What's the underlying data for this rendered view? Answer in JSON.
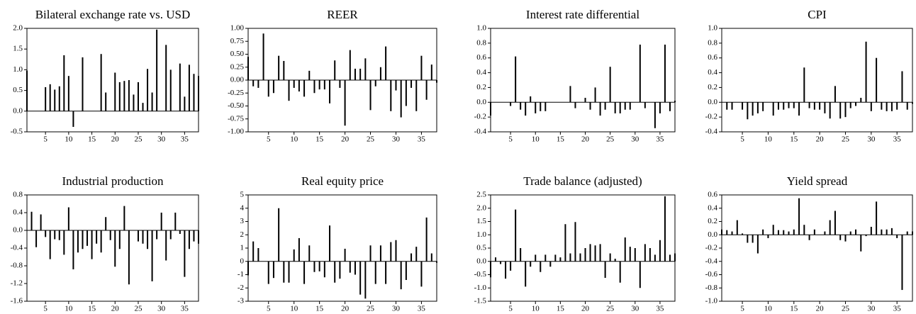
{
  "chart_data": [
    {
      "type": "bar",
      "title": "Bilateral exchange rate vs. USD",
      "color": "#000000",
      "x": [
        1,
        2,
        3,
        4,
        5,
        6,
        7,
        8,
        9,
        10,
        11,
        12,
        13,
        14,
        15,
        16,
        17,
        18,
        19,
        20,
        21,
        22,
        23,
        24,
        25,
        26,
        27,
        28,
        29,
        30,
        31,
        32,
        33,
        34,
        35,
        36,
        37,
        38
      ],
      "values": [
        0.98,
        0,
        0,
        0,
        0.58,
        0.65,
        0.52,
        0.6,
        1.35,
        0.85,
        -0.38,
        0,
        1.3,
        0,
        0,
        0,
        1.38,
        0.45,
        0,
        0.93,
        0.7,
        0.73,
        0.75,
        0.4,
        0.7,
        0.2,
        1.02,
        0.45,
        1.97,
        0,
        1.6,
        1.0,
        0,
        1.15,
        0.35,
        1.12,
        0.9,
        0.85
      ],
      "xlim": [
        1,
        38
      ],
      "xticks": [
        5,
        10,
        15,
        20,
        25,
        30,
        35
      ],
      "ylim": [
        -0.5,
        2.0
      ],
      "yticks": [
        -0.5,
        {
          "value": 0,
          "label": "0.0"
        },
        0.5,
        {
          "value": 1,
          "label": "1.0"
        },
        1.5,
        {
          "value": 2,
          "label": "2.0"
        }
      ]
    },
    {
      "type": "bar",
      "title": "REER",
      "color": "#000000",
      "x": [
        1,
        2,
        3,
        4,
        5,
        6,
        7,
        8,
        9,
        10,
        11,
        12,
        13,
        14,
        15,
        16,
        17,
        18,
        19,
        20,
        21,
        22,
        23,
        24,
        25,
        26,
        27,
        28,
        29,
        30,
        31,
        32,
        33,
        34,
        35,
        36,
        37,
        38
      ],
      "values": [
        0.45,
        -0.12,
        -0.15,
        0.9,
        -0.32,
        -0.25,
        0.47,
        0.37,
        -0.4,
        -0.15,
        -0.22,
        -0.32,
        0.18,
        -0.25,
        -0.18,
        -0.18,
        -0.45,
        0.38,
        -0.15,
        -0.88,
        0.58,
        0.22,
        0.22,
        0.42,
        -0.58,
        -0.12,
        0.25,
        0.65,
        -0.6,
        -0.2,
        -0.72,
        -0.5,
        -0.15,
        -0.6,
        0.47,
        -0.38,
        0.3,
        -0.05
      ],
      "xlim": [
        1,
        38
      ],
      "xticks": [
        5,
        10,
        15,
        20,
        25,
        30,
        35
      ],
      "ylim": [
        -1,
        1
      ],
      "yticks": [
        {
          "value": -1,
          "label": "-1.00"
        },
        {
          "value": -0.75,
          "label": "-0.75"
        },
        {
          "value": -0.5,
          "label": "-0.50"
        },
        {
          "value": -0.25,
          "label": "-0.25"
        },
        {
          "value": 0,
          "label": "0.00"
        },
        {
          "value": 0.25,
          "label": "0.25"
        },
        {
          "value": 0.5,
          "label": "0.50"
        },
        {
          "value": 0.75,
          "label": "0.75"
        },
        {
          "value": 1,
          "label": "1.00"
        }
      ]
    },
    {
      "type": "bar",
      "title": "Interest rate differential",
      "color": "#000000",
      "x": [
        1,
        2,
        3,
        4,
        5,
        6,
        7,
        8,
        9,
        10,
        11,
        12,
        13,
        14,
        15,
        16,
        17,
        18,
        19,
        20,
        21,
        22,
        23,
        24,
        25,
        26,
        27,
        28,
        29,
        30,
        31,
        32,
        33,
        34,
        35,
        36,
        37,
        38
      ],
      "values": [
        -0.18,
        0,
        0,
        0,
        -0.05,
        0.62,
        -0.1,
        -0.18,
        0.08,
        -0.15,
        -0.12,
        -0.12,
        0,
        0,
        0,
        0,
        0.22,
        -0.08,
        0,
        0.06,
        -0.1,
        0.2,
        -0.18,
        -0.1,
        0.48,
        -0.15,
        -0.15,
        -0.1,
        -0.1,
        0,
        0.78,
        -0.08,
        0,
        -0.35,
        -0.15,
        0.78,
        -0.12,
        0.02
      ],
      "xlim": [
        1,
        38
      ],
      "xticks": [
        5,
        10,
        15,
        20,
        25,
        30,
        35
      ],
      "ylim": [
        -0.4,
        1.0
      ],
      "yticks": [
        -0.4,
        -0.2,
        {
          "value": 0,
          "label": "0.0"
        },
        0.2,
        0.4,
        0.6,
        0.8,
        {
          "value": 1,
          "label": "1.0"
        }
      ]
    },
    {
      "type": "bar",
      "title": "CPI",
      "color": "#000000",
      "x": [
        1,
        2,
        3,
        4,
        5,
        6,
        7,
        8,
        9,
        10,
        11,
        12,
        13,
        14,
        15,
        16,
        17,
        18,
        19,
        20,
        21,
        22,
        23,
        24,
        25,
        26,
        27,
        28,
        29,
        30,
        31,
        32,
        33,
        34,
        35,
        36,
        37,
        38
      ],
      "values": [
        0,
        -0.1,
        -0.1,
        0,
        -0.1,
        -0.23,
        -0.18,
        -0.15,
        -0.12,
        0,
        -0.18,
        -0.1,
        -0.1,
        -0.08,
        -0.08,
        -0.18,
        0.47,
        -0.08,
        -0.1,
        -0.1,
        -0.15,
        -0.22,
        0.22,
        -0.22,
        -0.2,
        -0.08,
        -0.05,
        0.06,
        0.82,
        -0.12,
        0.6,
        -0.1,
        -0.12,
        -0.12,
        -0.1,
        0.42,
        -0.1,
        -0.02
      ],
      "xlim": [
        1,
        38
      ],
      "xticks": [
        5,
        10,
        15,
        20,
        25,
        30,
        35
      ],
      "ylim": [
        -0.4,
        1.0
      ],
      "yticks": [
        -0.4,
        -0.2,
        {
          "value": 0,
          "label": "0.0"
        },
        0.2,
        0.4,
        0.6,
        0.8,
        {
          "value": 1,
          "label": "1.0"
        }
      ]
    },
    {
      "type": "bar",
      "title": "Industrial production",
      "color": "#000000",
      "x": [
        1,
        2,
        3,
        4,
        5,
        6,
        7,
        8,
        9,
        10,
        11,
        12,
        13,
        14,
        15,
        16,
        17,
        18,
        19,
        20,
        21,
        22,
        23,
        24,
        25,
        26,
        27,
        28,
        29,
        30,
        31,
        32,
        33,
        34,
        35,
        36,
        37,
        38
      ],
      "values": [
        0,
        0.42,
        -0.38,
        0.36,
        -0.15,
        -0.65,
        -0.2,
        -0.22,
        -0.55,
        0.52,
        -0.88,
        -0.5,
        -0.42,
        -0.35,
        -0.65,
        -0.3,
        -0.5,
        0.3,
        -0.22,
        -0.82,
        -0.42,
        0.55,
        -1.22,
        0,
        -0.25,
        -0.3,
        -0.42,
        -1.15,
        -0.2,
        0.4,
        -0.68,
        -0.2,
        0.4,
        -0.08,
        -1.05,
        -0.42,
        -0.25,
        -0.3
      ],
      "xlim": [
        1,
        38
      ],
      "xticks": [
        5,
        10,
        15,
        20,
        25,
        30,
        35
      ],
      "ylim": [
        -1.6,
        0.8
      ],
      "yticks": [
        -1.6,
        -1.2,
        -0.8,
        -0.4,
        {
          "value": 0,
          "label": "0.0"
        },
        0.4,
        0.8
      ]
    },
    {
      "type": "bar",
      "title": "Real equity price",
      "color": "#000000",
      "x": [
        1,
        2,
        3,
        4,
        5,
        6,
        7,
        8,
        9,
        10,
        11,
        12,
        13,
        14,
        15,
        16,
        17,
        18,
        19,
        20,
        21,
        22,
        23,
        24,
        25,
        26,
        27,
        28,
        29,
        30,
        31,
        32,
        33,
        34,
        35,
        36,
        37,
        38
      ],
      "values": [
        -1.05,
        1.5,
        1.0,
        0,
        -1.7,
        -1.25,
        4.0,
        -1.6,
        -1.6,
        0.9,
        1.75,
        -1.7,
        1.2,
        -0.8,
        -0.75,
        -1.2,
        2.7,
        -1.6,
        -1.3,
        0.95,
        -0.85,
        -1.0,
        -2.5,
        -2.8,
        1.2,
        -1.7,
        1.2,
        -1.7,
        1.45,
        1.6,
        -2.1,
        -1.4,
        0.6,
        1.1,
        -1.9,
        3.3,
        0.6,
        -0.1
      ],
      "xlim": [
        1,
        38
      ],
      "xticks": [
        5,
        10,
        15,
        20,
        25,
        30,
        35
      ],
      "ylim": [
        -3,
        5
      ],
      "yticks": [
        -3,
        -2,
        -1,
        0,
        1,
        2,
        3,
        4,
        5
      ]
    },
    {
      "type": "bar",
      "title": "Trade balance (adjusted)",
      "color": "#000000",
      "x": [
        1,
        2,
        3,
        4,
        5,
        6,
        7,
        8,
        9,
        10,
        11,
        12,
        13,
        14,
        15,
        16,
        17,
        18,
        19,
        20,
        21,
        22,
        23,
        24,
        25,
        26,
        27,
        28,
        29,
        30,
        31,
        32,
        33,
        34,
        35,
        36,
        37,
        38
      ],
      "values": [
        -0.6,
        0.15,
        -0.1,
        -0.65,
        -0.35,
        1.95,
        0.5,
        -0.95,
        -0.2,
        0.25,
        -0.4,
        0.25,
        -0.2,
        0.25,
        0.15,
        1.4,
        0.3,
        1.48,
        0.3,
        0.5,
        0.65,
        0.6,
        0.65,
        -0.62,
        0.3,
        0.1,
        -0.8,
        0.9,
        0.55,
        0.5,
        -1.0,
        0.65,
        0.5,
        0.25,
        0.8,
        2.45,
        0.25,
        0.3
      ],
      "xlim": [
        1,
        38
      ],
      "xticks": [
        5,
        10,
        15,
        20,
        25,
        30,
        35
      ],
      "ylim": [
        -1.5,
        2.5
      ],
      "yticks": [
        -1.5,
        {
          "value": -1,
          "label": "-1.0"
        },
        -0.5,
        {
          "value": 0,
          "label": "0.0"
        },
        0.5,
        {
          "value": 1,
          "label": "1.0"
        },
        1.5,
        {
          "value": 2,
          "label": "2.0"
        },
        2.5
      ]
    },
    {
      "type": "bar",
      "title": "Yield spread",
      "color": "#000000",
      "x": [
        1,
        2,
        3,
        4,
        5,
        6,
        7,
        8,
        9,
        10,
        11,
        12,
        13,
        14,
        15,
        16,
        17,
        18,
        19,
        20,
        21,
        22,
        23,
        24,
        25,
        26,
        27,
        28,
        29,
        30,
        31,
        32,
        33,
        34,
        35,
        36,
        37,
        38
      ],
      "values": [
        0.08,
        0.07,
        0.05,
        0.22,
        0.02,
        -0.12,
        -0.12,
        -0.28,
        0.08,
        -0.05,
        0.15,
        0.07,
        0.07,
        0.05,
        0.08,
        0.55,
        0.15,
        -0.08,
        0.08,
        0,
        0.05,
        0.22,
        0.36,
        -0.08,
        -0.1,
        0.05,
        0.08,
        -0.25,
        -0.02,
        0.12,
        0.5,
        0.08,
        0.08,
        0.1,
        -0.05,
        -0.83,
        0.05,
        0.05
      ],
      "xlim": [
        1,
        38
      ],
      "xticks": [
        5,
        10,
        15,
        20,
        25,
        30,
        35
      ],
      "ylim": [
        -1.0,
        0.6
      ],
      "yticks": [
        {
          "value": -1,
          "label": "-1.0"
        },
        -0.8,
        -0.6,
        -0.4,
        -0.2,
        {
          "value": 0,
          "label": "0.0"
        },
        0.2,
        0.4,
        0.6
      ]
    }
  ]
}
